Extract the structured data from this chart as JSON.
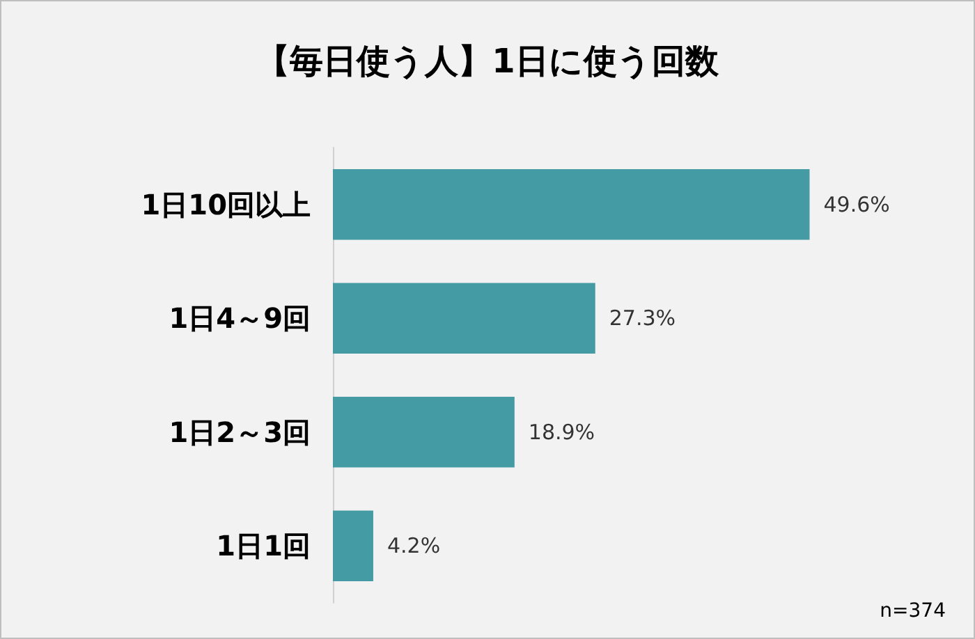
{
  "chart_data": {
    "type": "bar",
    "title": "【毎日使う人】1日に使う回数",
    "orientation": "horizontal",
    "categories": [
      "1日10回以上",
      "1日4～9回",
      "1日2～3回",
      "1日1回"
    ],
    "values": [
      49.6,
      27.3,
      18.9,
      4.2
    ],
    "color": "#459ba4",
    "value_labels": [
      "49.6%",
      "27.3%",
      "18.9%",
      "4.2%"
    ],
    "tick_labels": "y",
    "annotations": [
      "n=374"
    ]
  }
}
